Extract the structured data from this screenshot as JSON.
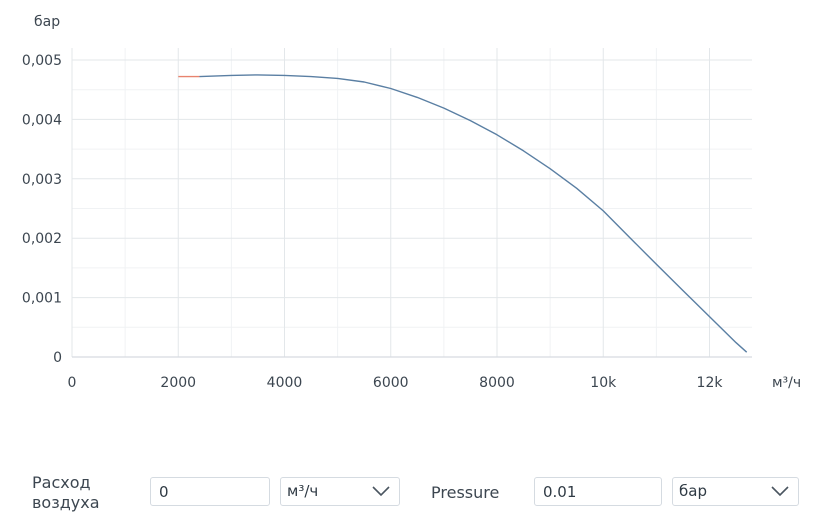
{
  "chart_data": {
    "type": "line",
    "y_unit": "бар",
    "x_unit": "м³/ч",
    "xlim": [
      0,
      12800
    ],
    "ylim": [
      0,
      0.005
    ],
    "x_ticks": [
      0,
      2000,
      4000,
      6000,
      8000,
      10000,
      12000
    ],
    "x_tick_labels": [
      "0",
      "2000",
      "4000",
      "6000",
      "8000",
      "10k",
      "12k"
    ],
    "y_ticks": [
      0,
      0.001,
      0.002,
      0.003,
      0.004,
      0.005
    ],
    "y_tick_labels": [
      "0",
      "0,001",
      "0,002",
      "0,003",
      "0,004",
      "0,005"
    ],
    "grid": true,
    "series": [
      {
        "color": "#5a7fa3",
        "points": [
          [
            2400,
            0.00472
          ],
          [
            3000,
            0.00474
          ],
          [
            3500,
            0.00475
          ],
          [
            4000,
            0.00474
          ],
          [
            4500,
            0.00472
          ],
          [
            5000,
            0.00469
          ],
          [
            5500,
            0.00463
          ],
          [
            6000,
            0.00452
          ],
          [
            6500,
            0.00437
          ],
          [
            7000,
            0.00419
          ],
          [
            7500,
            0.00398
          ],
          [
            8000,
            0.00374
          ],
          [
            8500,
            0.00347
          ],
          [
            9000,
            0.00317
          ],
          [
            9500,
            0.00284
          ],
          [
            10000,
            0.00246
          ],
          [
            10500,
            0.00201
          ],
          [
            11000,
            0.00156
          ],
          [
            11500,
            0.00112
          ],
          [
            12000,
            0.00068
          ],
          [
            12500,
            0.00024
          ],
          [
            12700,
            8e-05
          ]
        ]
      },
      {
        "color": "#e8836e",
        "points": [
          [
            2000,
            0.00472
          ],
          [
            2400,
            0.00472
          ]
        ]
      }
    ]
  },
  "controls": {
    "flow_label": "Расход воздуха",
    "flow_value": "0",
    "flow_unit": "м³/ч",
    "pressure_label": "Pressure",
    "pressure_value": "0.01",
    "pressure_unit": "бар"
  }
}
